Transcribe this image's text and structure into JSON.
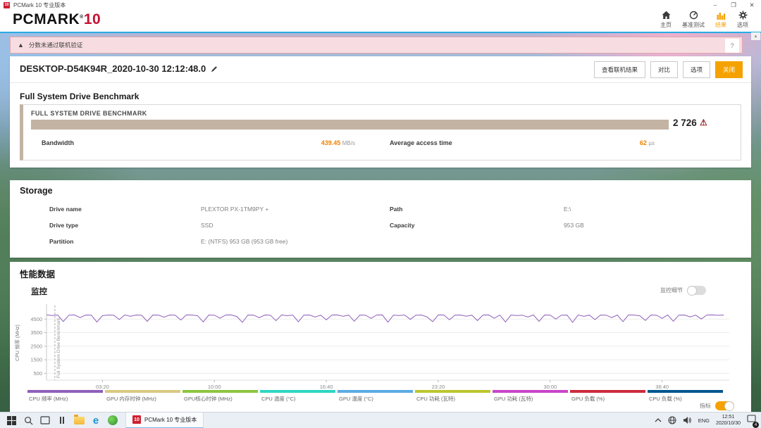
{
  "window": {
    "title": "PCMark 10 专业版本",
    "controls": {
      "minimize": "–",
      "maximize": "❐",
      "close": "✕"
    }
  },
  "header": {
    "logo_text": "PCMARK",
    "logo_reg": "®",
    "logo_number": "10",
    "logo_red": "#c41230",
    "accent_color": "#f5a200",
    "line_color": "#29abe2",
    "nav": [
      {
        "label": "主页",
        "icon": "home-icon",
        "active": false
      },
      {
        "label": "基准测试",
        "icon": "gauge-icon",
        "active": false
      },
      {
        "label": "结果",
        "icon": "bar-chart-icon",
        "active": true
      },
      {
        "label": "选项",
        "icon": "gear-icon",
        "active": false
      }
    ]
  },
  "banner": {
    "icon": "warning-icon",
    "text": "分数未通过联机验证",
    "help_label": "?"
  },
  "result": {
    "title": "DESKTOP-D54K94R_2020-10-30 12:12:48.0",
    "edit_icon": "pencil-icon",
    "buttons": [
      {
        "label": "查看联机结果"
      },
      {
        "label": "对比"
      },
      {
        "label": "选项"
      },
      {
        "label": "关闭",
        "primary": true
      }
    ],
    "section_title": "Full System Drive Benchmark",
    "benchmark_name": "FULL SYSTEM DRIVE BENCHMARK",
    "score": "2 726",
    "score_warning_icon": "warning-triangle-icon",
    "bar_color": "#c2b3a3",
    "metrics": [
      {
        "label": "Bandwidth",
        "value": "439.45",
        "unit": "MB/s"
      },
      {
        "label": "Average access time",
        "value": "62",
        "unit": "µs"
      }
    ]
  },
  "storage": {
    "title": "Storage",
    "fields": [
      {
        "label": "Drive name",
        "value": "PLEXTOR PX-1TM9PY +"
      },
      {
        "label": "Path",
        "value": "E:\\"
      },
      {
        "label": "Drive type",
        "value": "SSD"
      },
      {
        "label": "Capacity",
        "value": "953 GB"
      },
      {
        "label": "Partition",
        "value": "E: (NTFS) 953 GB (953 GB free)"
      }
    ]
  },
  "performance": {
    "title": "性能数据",
    "monitor_label": "监控",
    "detail_toggle_label": "监控细节",
    "detail_toggle_on": false,
    "metrics_toggle_label": "指标",
    "metrics_toggle_on": true
  },
  "chart_data": {
    "type": "line",
    "title": "",
    "xlabel": "",
    "ylabel": "CPU 频率 (MHz)",
    "ylim": [
      0,
      5500
    ],
    "yticks": [
      500,
      1500,
      2500,
      3500,
      4500
    ],
    "xlim_seconds": [
      0,
      2440
    ],
    "xticks": [
      {
        "t": 200,
        "label": "03:20"
      },
      {
        "t": 600,
        "label": "10:00"
      },
      {
        "t": 1000,
        "label": "16:40"
      },
      {
        "t": 1400,
        "label": "23:20"
      },
      {
        "t": 1800,
        "label": "30:00"
      },
      {
        "t": 2200,
        "label": "36:40"
      }
    ],
    "grid": true,
    "annotation": {
      "t": 30,
      "label": "Full System Drive Benchmark"
    },
    "series": [
      {
        "name": "CPU 频率 (MHz)",
        "color": "#8e5fba",
        "dt_seconds": 20,
        "values": [
          4810,
          4760,
          4800,
          4320,
          4790,
          4805,
          4610,
          4800,
          4795,
          4280,
          4750,
          4800,
          4790,
          4470,
          4805,
          4700,
          4800,
          4780,
          4330,
          4800,
          4795,
          4640,
          4800,
          4790,
          4430,
          4805,
          4800,
          4740,
          4290,
          4800,
          4790,
          4560,
          4800,
          4805,
          4690,
          4260,
          4800,
          4795,
          4600,
          4800,
          4790,
          4380,
          4805,
          4750,
          4800,
          4300,
          4795,
          4800,
          4650,
          4790,
          4440,
          4800,
          4805,
          4700,
          4795,
          4340,
          4800,
          4790,
          4550,
          4800,
          4805,
          4270,
          4795,
          4760,
          4800,
          4480,
          4790,
          4800,
          4660,
          4310,
          4805,
          4800,
          4450,
          4795,
          4800,
          4710,
          4790,
          4390,
          4800,
          4805,
          4560,
          4795,
          4290,
          4800,
          4760,
          4790,
          4650,
          4805,
          4330,
          4800,
          4795,
          4500,
          4790,
          4800,
          4260,
          4805,
          4700,
          4795,
          4460,
          4800,
          4790,
          4610,
          4800,
          4310,
          4805,
          4795,
          4750,
          4400,
          4800,
          4790,
          4550,
          4805,
          4340,
          4795,
          4800,
          4660,
          4790,
          4510,
          4800,
          4805,
          4780,
          4800
        ]
      }
    ],
    "legend": [
      {
        "label": "CPU 频率 (MHz)",
        "color": "#8e5fba"
      },
      {
        "label": "GPU 内存时钟 (MHz)",
        "color": "#d9c982"
      },
      {
        "label": "GPU核心时钟 (MHz)",
        "color": "#8cc63f"
      },
      {
        "label": "CPU 温度 (°C)",
        "color": "#2fd6c3"
      },
      {
        "label": "GPU 温度 (°C)",
        "color": "#5aabe3"
      },
      {
        "label": "CPU 功耗 (瓦特)",
        "color": "#bcc62e"
      },
      {
        "label": "GPU 功耗 (瓦特)",
        "color": "#c944c9"
      },
      {
        "label": "GPU 负载 (%)",
        "color": "#cc2b3c"
      },
      {
        "label": "CPU 负载 (%)",
        "color": "#00568e"
      }
    ],
    "legend_position": "bottom"
  },
  "taskbar": {
    "icons": [
      "start-icon",
      "search-icon",
      "task-view-icon",
      "pinned-app-icon",
      "file-explorer-icon",
      "edge-icon",
      "browser-icon"
    ],
    "app_icon_label": "10",
    "app_label": "PCMark 10 专业版本",
    "tray": {
      "icons": [
        "chevron-up-icon",
        "network-globe-icon",
        "speaker-icon",
        "notification-icon"
      ],
      "lang": "ENG",
      "time": "12:51",
      "date": "2020/10/30",
      "badge": "4"
    }
  }
}
